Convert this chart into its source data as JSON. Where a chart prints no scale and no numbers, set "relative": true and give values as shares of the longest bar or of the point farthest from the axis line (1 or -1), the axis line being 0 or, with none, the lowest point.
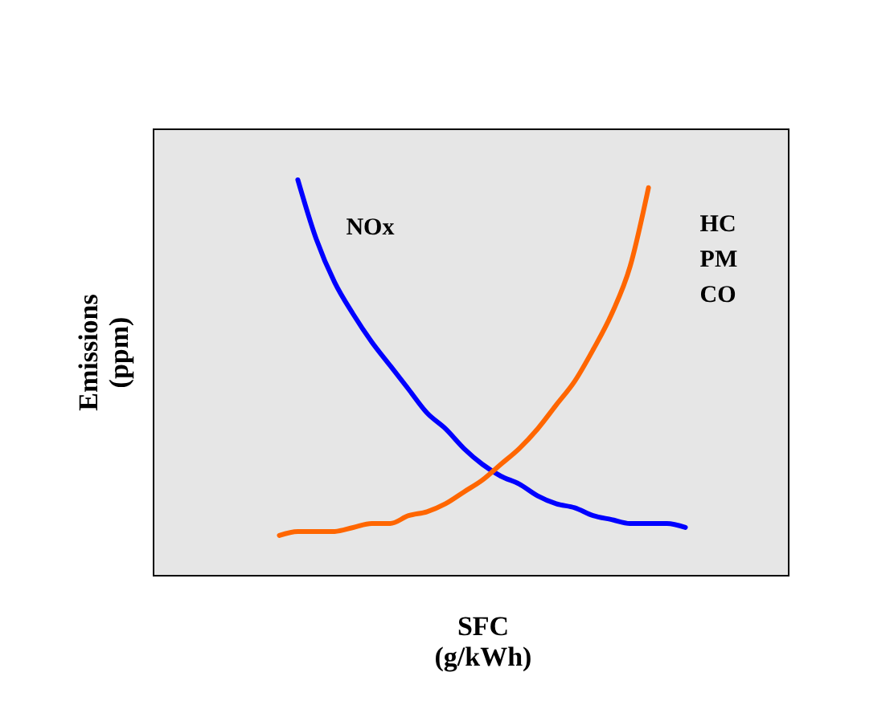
{
  "chart_data": {
    "type": "line",
    "relative": true,
    "xlabel": "SFC\n(g/kWh)",
    "ylabel": "Emissions\n(ppm)",
    "categories": [
      null,
      null,
      null,
      null,
      null,
      null,
      null,
      null,
      null,
      null,
      null,
      null,
      null,
      null,
      null,
      null,
      null,
      null,
      null,
      null,
      null,
      null,
      null
    ],
    "series": [
      {
        "name": "NOx",
        "color": "#0000ff",
        "values": [
          null,
          1.0,
          0.85,
          0.74,
          0.66,
          0.59,
          0.53,
          0.47,
          0.41,
          0.37,
          0.32,
          0.28,
          0.25,
          0.23,
          0.2,
          0.18,
          0.17,
          0.15,
          0.14,
          0.13,
          0.13,
          0.13,
          0.12
        ]
      },
      {
        "name": "HC\nPM\nCO",
        "color": "#ff6600",
        "values": [
          0.1,
          0.11,
          0.11,
          0.11,
          0.12,
          0.13,
          0.13,
          0.15,
          0.16,
          0.18,
          0.21,
          0.24,
          0.28,
          0.32,
          0.37,
          0.43,
          0.49,
          0.57,
          0.66,
          0.78,
          0.98,
          null,
          null
        ]
      }
    ],
    "grid": false,
    "legend": false,
    "marker": "none",
    "line_style": "solid"
  }
}
